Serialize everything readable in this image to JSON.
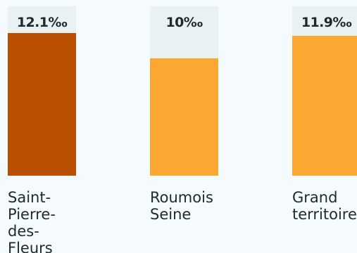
{
  "chart_data": {
    "type": "bar",
    "categories": [
      "Saint-\nPierre-\ndes-\nFleurs",
      "Roumois\nSeine",
      "Grand\nterritoire"
    ],
    "values": [
      12.1,
      10,
      11.9
    ],
    "value_labels": [
      "12.1‰",
      "10‰",
      "11.9‰"
    ],
    "ylim": [
      0,
      14.4
    ],
    "grid": false,
    "colors": [
      "#ba4f02",
      "#fca732",
      "#fca732"
    ],
    "track_color": "#e9f1f2"
  }
}
